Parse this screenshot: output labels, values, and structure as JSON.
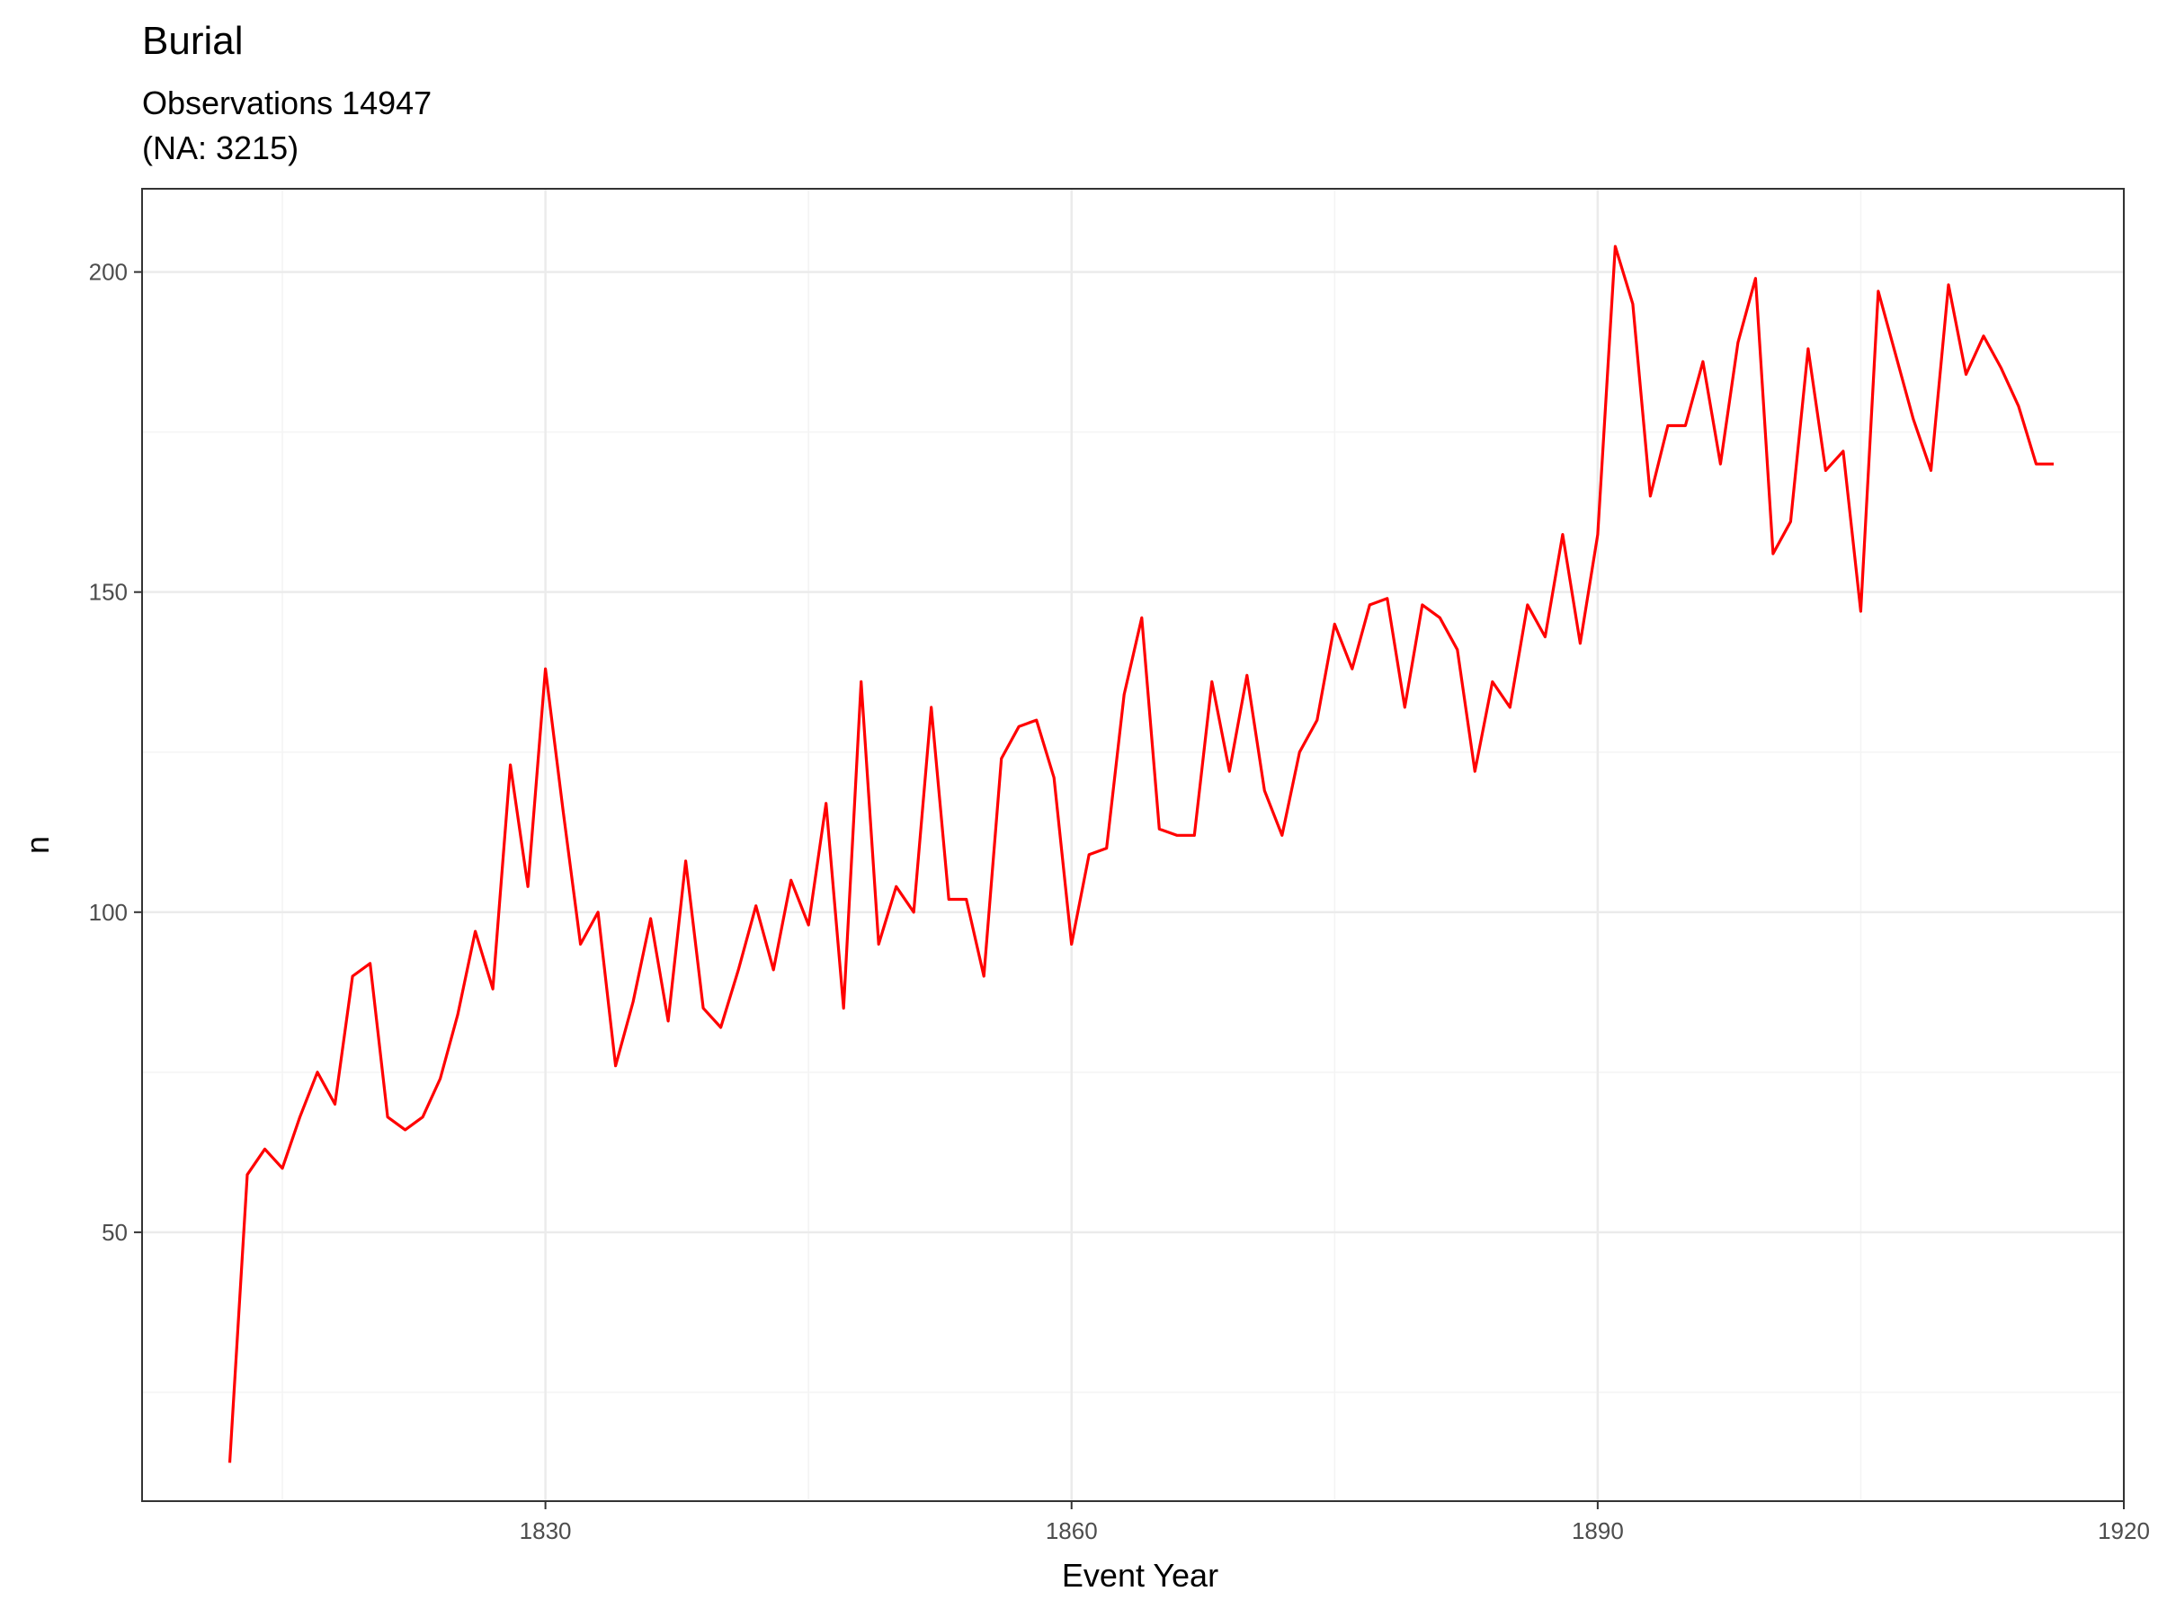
{
  "chart_data": {
    "type": "line",
    "title": "Burial",
    "subtitle_lines": [
      "Observations 14947",
      "(NA: 3215)"
    ],
    "xlabel": "Event Year",
    "ylabel": "n",
    "xlim": [
      1807,
      1920
    ],
    "ylim": [
      8,
      213
    ],
    "x_ticks": [
      1830,
      1860,
      1890,
      1920
    ],
    "x_minor_ticks": [
      1815,
      1845,
      1875,
      1905
    ],
    "y_ticks": [
      50,
      100,
      150,
      200
    ],
    "y_minor_ticks": [
      25,
      75,
      125,
      175
    ],
    "grid": true,
    "legend": "none",
    "series_color": "#FF0000",
    "series": [
      {
        "x": [
          1812,
          1813,
          1814,
          1815,
          1816,
          1817,
          1818,
          1819,
          1820,
          1821,
          1822,
          1823,
          1824,
          1825,
          1826,
          1827,
          1828,
          1829,
          1830,
          1831,
          1832,
          1833,
          1834,
          1835,
          1836,
          1837,
          1838,
          1839,
          1840,
          1841,
          1842,
          1843,
          1844,
          1845,
          1846,
          1847,
          1848,
          1849,
          1850,
          1851,
          1852,
          1853,
          1854,
          1855,
          1856,
          1857,
          1858,
          1859,
          1860,
          1861,
          1862,
          1863,
          1864,
          1865,
          1866,
          1867,
          1868,
          1869,
          1870,
          1871,
          1872,
          1873,
          1874,
          1875,
          1876,
          1877,
          1878,
          1879,
          1880,
          1881,
          1882,
          1883,
          1884,
          1885,
          1886,
          1887,
          1888,
          1889,
          1890,
          1891,
          1892,
          1893,
          1894,
          1895,
          1896,
          1897,
          1898,
          1899,
          1900,
          1901,
          1902,
          1903,
          1904,
          1905,
          1906,
          1907,
          1908,
          1909,
          1910,
          1911,
          1912,
          1913,
          1914,
          1915,
          1916
        ],
        "y": [
          14,
          59,
          63,
          60,
          68,
          75,
          70,
          90,
          92,
          68,
          66,
          68,
          74,
          84,
          97,
          88,
          123,
          104,
          138,
          116,
          95,
          100,
          76,
          86,
          99,
          83,
          108,
          85,
          82,
          91,
          101,
          91,
          105,
          98,
          117,
          85,
          136,
          95,
          104,
          100,
          132,
          102,
          102,
          90,
          124,
          129,
          130,
          121,
          95,
          109,
          110,
          134,
          146,
          113,
          112,
          112,
          136,
          122,
          137,
          119,
          112,
          125,
          130,
          145,
          138,
          148,
          149,
          132,
          148,
          146,
          141,
          122,
          136,
          132,
          148,
          143,
          159,
          142,
          159,
          204,
          195,
          165,
          176,
          176,
          186,
          170,
          189,
          199,
          156,
          161,
          188,
          169,
          172,
          147,
          197,
          187,
          177,
          169,
          198,
          184,
          190,
          185,
          179,
          170,
          170
        ]
      }
    ]
  }
}
